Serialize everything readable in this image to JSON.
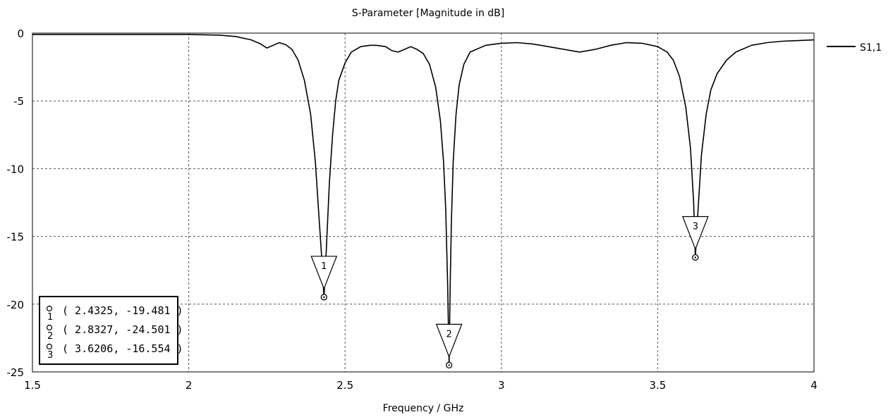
{
  "chart_data": {
    "type": "line",
    "title": "S-Parameter [Magnitude in dB]",
    "xlabel": "Frequency / GHz",
    "ylabel": "",
    "xlim": [
      1.5,
      4
    ],
    "ylim": [
      -25,
      0
    ],
    "x_ticks": [
      "1.5",
      "2",
      "2.5",
      "3",
      "3.5",
      "4"
    ],
    "y_ticks": [
      "0",
      "-5",
      "-10",
      "-15",
      "-20",
      "-25"
    ],
    "grid": true,
    "legend_position": "right",
    "series": [
      {
        "name": "S1,1",
        "color": "#000000",
        "x": [
          1.5,
          1.6,
          1.7,
          1.8,
          1.9,
          2.0,
          2.1,
          2.15,
          2.2,
          2.23,
          2.25,
          2.27,
          2.29,
          2.31,
          2.33,
          2.35,
          2.37,
          2.39,
          2.405,
          2.415,
          2.425,
          2.4325,
          2.44,
          2.45,
          2.46,
          2.47,
          2.48,
          2.5,
          2.52,
          2.55,
          2.58,
          2.6,
          2.63,
          2.65,
          2.67,
          2.69,
          2.71,
          2.73,
          2.75,
          2.77,
          2.79,
          2.805,
          2.815,
          2.822,
          2.828,
          2.8327,
          2.836,
          2.84,
          2.846,
          2.855,
          2.865,
          2.88,
          2.9,
          2.95,
          3.0,
          3.05,
          3.1,
          3.15,
          3.2,
          3.25,
          3.3,
          3.35,
          3.4,
          3.45,
          3.5,
          3.53,
          3.55,
          3.57,
          3.59,
          3.605,
          3.615,
          3.6206,
          3.628,
          3.64,
          3.655,
          3.67,
          3.69,
          3.72,
          3.75,
          3.8,
          3.85,
          3.9,
          3.95,
          4.0
        ],
        "y": [
          -0.1,
          -0.1,
          -0.1,
          -0.1,
          -0.1,
          -0.1,
          -0.15,
          -0.25,
          -0.5,
          -0.8,
          -1.1,
          -0.9,
          -0.7,
          -0.85,
          -1.2,
          -2.0,
          -3.5,
          -6.0,
          -9.5,
          -13.0,
          -16.5,
          -19.481,
          -16.0,
          -11.0,
          -7.5,
          -5.0,
          -3.5,
          -2.2,
          -1.4,
          -1.0,
          -0.9,
          -0.9,
          -1.0,
          -1.3,
          -1.4,
          -1.2,
          -1.0,
          -1.2,
          -1.5,
          -2.3,
          -4.0,
          -6.5,
          -9.5,
          -13.0,
          -18.5,
          -24.501,
          -19.0,
          -14.0,
          -9.5,
          -6.0,
          -3.8,
          -2.3,
          -1.4,
          -0.9,
          -0.75,
          -0.7,
          -0.8,
          -1.0,
          -1.2,
          -1.4,
          -1.2,
          -0.9,
          -0.7,
          -0.75,
          -1.0,
          -1.4,
          -2.0,
          -3.2,
          -5.5,
          -8.5,
          -12.5,
          -16.554,
          -13.5,
          -9.0,
          -6.0,
          -4.2,
          -3.0,
          -2.0,
          -1.4,
          -0.9,
          -0.7,
          -0.6,
          -0.55,
          -0.5
        ]
      }
    ],
    "markers": [
      {
        "id": "1",
        "x": 2.4325,
        "y": -19.481,
        "readout": "( 2.4325, -19.481 )"
      },
      {
        "id": "2",
        "x": 2.8327,
        "y": -24.501,
        "readout": "( 2.8327, -24.501 )"
      },
      {
        "id": "3",
        "x": 3.6206,
        "y": -16.554,
        "readout": "( 3.6206, -16.554 )"
      }
    ]
  }
}
